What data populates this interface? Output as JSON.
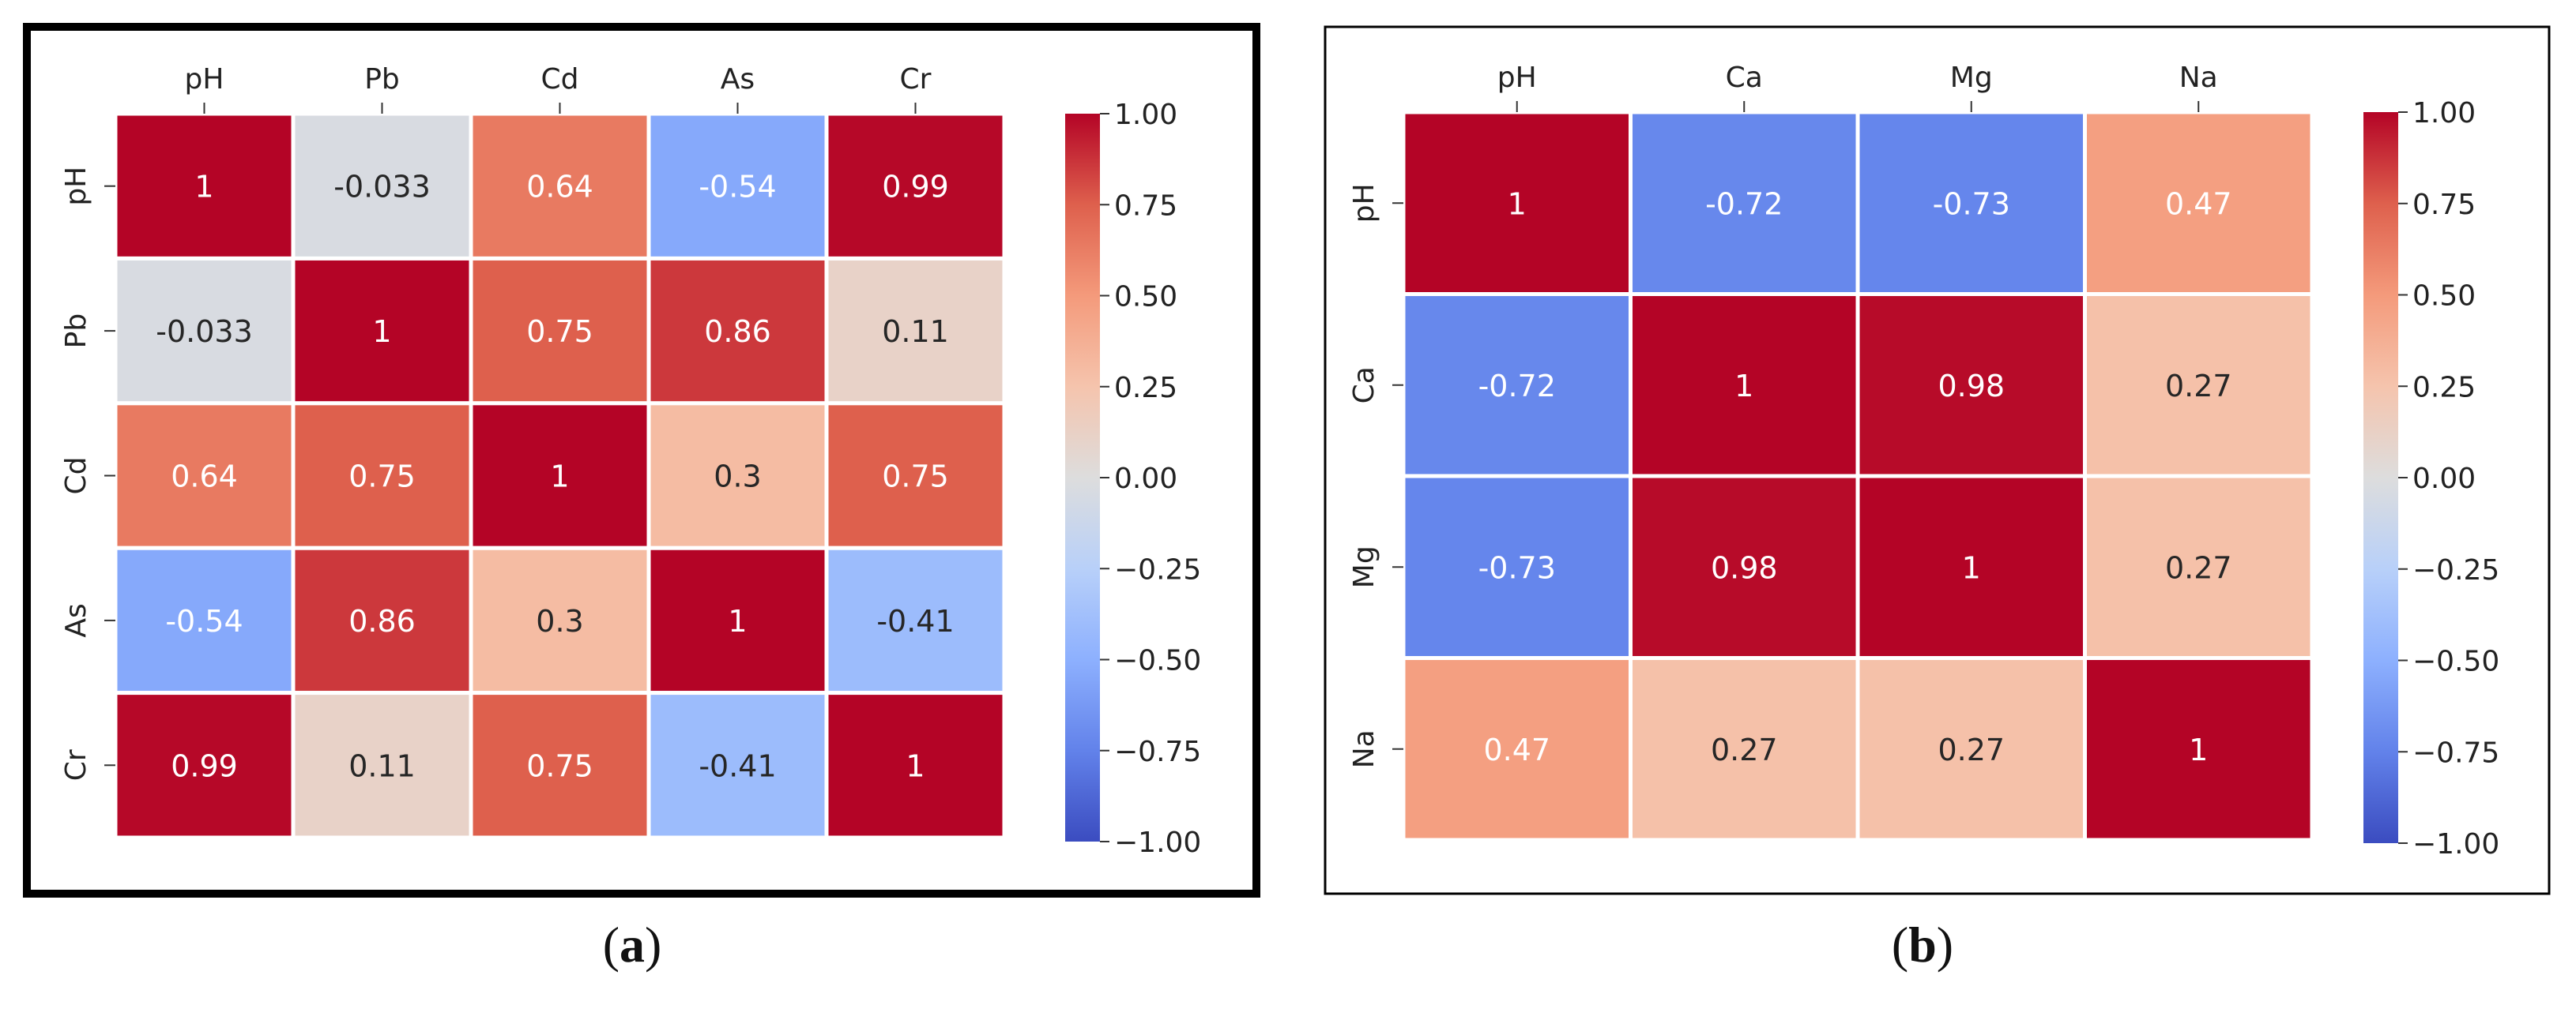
{
  "figure": {
    "captions": [
      {
        "open": "(",
        "letter": "a",
        "close": ")"
      },
      {
        "open": "(",
        "letter": "b",
        "close": ")"
      }
    ]
  },
  "chart_data": [
    {
      "type": "heatmap",
      "id": "a",
      "labels": [
        "pH",
        "Pb",
        "Cd",
        "As",
        "Cr"
      ],
      "values": [
        [
          1,
          -0.033,
          0.64,
          -0.54,
          0.99
        ],
        [
          -0.033,
          1,
          0.75,
          0.86,
          0.11
        ],
        [
          0.64,
          0.75,
          1,
          0.3,
          0.75
        ],
        [
          -0.54,
          0.86,
          0.3,
          1,
          -0.41
        ],
        [
          0.99,
          0.11,
          0.75,
          -0.41,
          1
        ]
      ],
      "cell_text": [
        [
          "1",
          "-0.033",
          "0.64",
          "-0.54",
          "0.99"
        ],
        [
          "-0.033",
          "1",
          "0.75",
          "0.86",
          "0.11"
        ],
        [
          "0.64",
          "0.75",
          "1",
          "0.3",
          "0.75"
        ],
        [
          "-0.54",
          "0.86",
          "0.3",
          "1",
          "-0.41"
        ],
        [
          "0.99",
          "0.11",
          "0.75",
          "-0.41",
          "1"
        ]
      ],
      "colorbar": {
        "range": [
          -1,
          1
        ],
        "ticks": [
          1,
          0.75,
          0.5,
          0.25,
          0,
          -0.25,
          -0.5,
          -0.75,
          -1
        ],
        "tick_labels": [
          "1.00",
          "0.75",
          "0.50",
          "0.25",
          "0.00",
          "−0.25",
          "−0.50",
          "−0.75",
          "−1.00"
        ],
        "colormap": "coolwarm"
      }
    },
    {
      "type": "heatmap",
      "id": "b",
      "labels": [
        "pH",
        "Ca",
        "Mg",
        "Na"
      ],
      "values": [
        [
          1,
          -0.72,
          -0.73,
          0.47
        ],
        [
          -0.72,
          1,
          0.98,
          0.27
        ],
        [
          -0.73,
          0.98,
          1,
          0.27
        ],
        [
          0.47,
          0.27,
          0.27,
          1
        ]
      ],
      "cell_text": [
        [
          "1",
          "-0.72",
          "-0.73",
          "0.47"
        ],
        [
          "-0.72",
          "1",
          "0.98",
          "0.27"
        ],
        [
          "-0.73",
          "0.98",
          "1",
          "0.27"
        ],
        [
          "0.47",
          "0.27",
          "0.27",
          "1"
        ]
      ],
      "colorbar": {
        "range": [
          -1,
          1
        ],
        "ticks": [
          1,
          0.75,
          0.5,
          0.25,
          0,
          -0.25,
          -0.5,
          -0.75,
          -1
        ],
        "tick_labels": [
          "1.00",
          "0.75",
          "0.50",
          "0.25",
          "0.00",
          "−0.25",
          "−0.50",
          "−0.75",
          "−1.00"
        ],
        "colormap": "coolwarm"
      }
    }
  ]
}
